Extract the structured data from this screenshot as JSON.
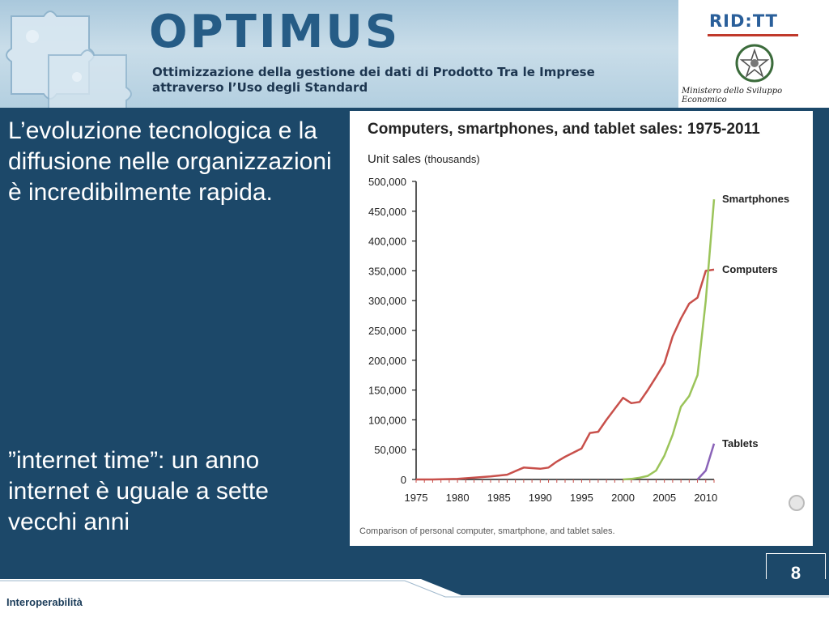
{
  "header": {
    "brand": "OPTIMUS",
    "subtitle_line1": "Ottimizzazione della gestione dei dati di Prodotto Tra le Imprese",
    "subtitle_line2": "attraverso l’Uso degli Standard"
  },
  "logos": {
    "ridtt": "RID:TT",
    "ministero": "Ministero dello Sviluppo Economico"
  },
  "body": {
    "paragraph1": "L’evoluzione tecnologica e la diffusione nelle organizzazioni è incredibilmente rapida.",
    "paragraph2": "”internet time”: un anno internet è uguale a sette vecchi anni"
  },
  "page_number": "8",
  "footer": {
    "label": "Interoperabilità"
  },
  "colors": {
    "computers": "#c8504b",
    "smartphones": "#9bc45a",
    "tablets": "#8a63b8",
    "background": "#1c4869"
  },
  "chart_data": {
    "type": "line",
    "title": "Computers, smartphones, and tablet sales: 1975-2011",
    "ylabel": "Unit sales",
    "ylabel_unit": "(thousands)",
    "caption": "Comparison of personal computer, smartphone, and tablet sales.",
    "xlim": [
      1975,
      2011
    ],
    "ylim": [
      0,
      500000
    ],
    "x_ticks": [
      1975,
      1980,
      1985,
      1990,
      1995,
      2000,
      2005,
      2010
    ],
    "y_ticks": [
      0,
      50000,
      100000,
      150000,
      200000,
      250000,
      300000,
      350000,
      400000,
      450000,
      500000
    ],
    "y_tick_labels": [
      "0",
      "50,000",
      "100,000",
      "150,000",
      "200,000",
      "250,000",
      "300,000",
      "350,000",
      "400,000",
      "450,000",
      "500,000"
    ],
    "series": [
      {
        "name": "Computers",
        "x": [
          1975,
          1977,
          1980,
          1982,
          1984,
          1986,
          1988,
          1989,
          1990,
          1991,
          1992,
          1993,
          1995,
          1996,
          1997,
          1998,
          2000,
          2001,
          2002,
          2003,
          2004,
          2005,
          2006,
          2007,
          2008,
          2009,
          2010,
          2011
        ],
        "values": [
          0,
          0,
          1000,
          3000,
          5000,
          8000,
          20000,
          19000,
          18000,
          20000,
          30000,
          38000,
          52000,
          78000,
          80000,
          100000,
          137000,
          128000,
          130000,
          150000,
          172000,
          195000,
          240000,
          270000,
          295000,
          305000,
          350000,
          352000
        ]
      },
      {
        "name": "Smartphones",
        "x": [
          2000,
          2001,
          2002,
          2003,
          2004,
          2005,
          2006,
          2007,
          2008,
          2009,
          2010,
          2011
        ],
        "values": [
          0,
          1000,
          3000,
          6000,
          15000,
          40000,
          75000,
          122000,
          140000,
          175000,
          300000,
          470000
        ]
      },
      {
        "name": "Tablets",
        "x": [
          2009,
          2010,
          2011
        ],
        "values": [
          0,
          15000,
          60000
        ]
      }
    ]
  }
}
